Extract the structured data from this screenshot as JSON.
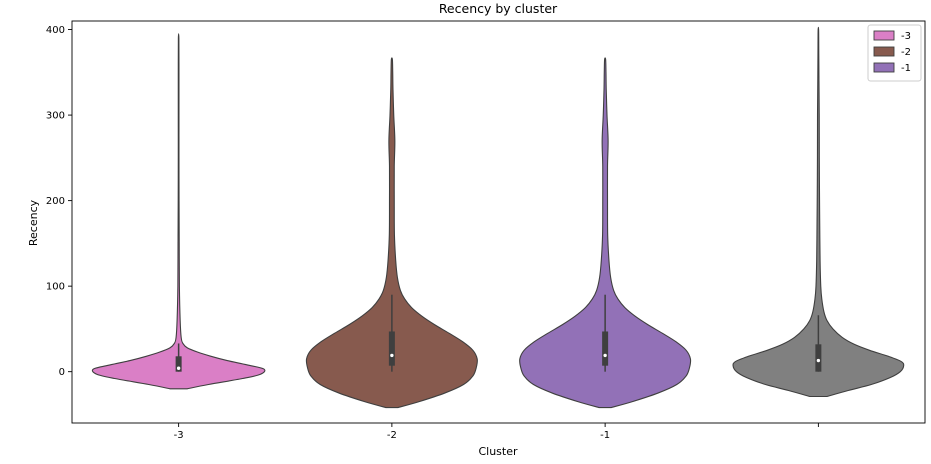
{
  "chart_data": {
    "type": "violin",
    "title": "Recency by cluster",
    "xlabel": "Cluster",
    "ylabel": "Recency",
    "ylim": [
      -60,
      410
    ],
    "yticks": [
      0,
      100,
      200,
      300,
      400
    ],
    "categories": [
      "-3",
      "-2",
      "-1",
      ""
    ],
    "grid": false,
    "legend": {
      "placement": "top-right",
      "entries": [
        {
          "label": "-3",
          "color": "#da7fc6"
        },
        {
          "label": "-2",
          "color": "#875a4e"
        },
        {
          "label": "-1",
          "color": "#9271b7"
        }
      ]
    },
    "series": [
      {
        "category": "-3",
        "color": "#da7fc6",
        "box": {
          "q1": 0,
          "median": 4,
          "q3": 18,
          "whisker_low": 0,
          "whisker_high": 33
        },
        "density": [
          [
            -20,
            0.1
          ],
          [
            -15,
            0.35
          ],
          [
            -8,
            0.75
          ],
          [
            -3,
            0.96
          ],
          [
            3,
            1.0
          ],
          [
            8,
            0.8
          ],
          [
            13,
            0.57
          ],
          [
            18,
            0.38
          ],
          [
            23,
            0.22
          ],
          [
            28,
            0.1
          ],
          [
            33,
            0.05
          ],
          [
            40,
            0.03
          ],
          [
            60,
            0.018
          ],
          [
            100,
            0.009
          ],
          [
            150,
            0.007
          ],
          [
            200,
            0.005
          ],
          [
            250,
            0.004
          ],
          [
            300,
            0.004
          ],
          [
            350,
            0.004
          ],
          [
            390,
            0.003
          ]
        ]
      },
      {
        "category": "-2",
        "color": "#875a4e",
        "box": {
          "q1": 7,
          "median": 19,
          "q3": 47,
          "whisker_low": 0,
          "whisker_high": 90
        },
        "density": [
          [
            -42,
            0.07
          ],
          [
            -35,
            0.32
          ],
          [
            -25,
            0.62
          ],
          [
            -15,
            0.84
          ],
          [
            -5,
            0.95
          ],
          [
            5,
            0.99
          ],
          [
            15,
            1.0
          ],
          [
            25,
            0.95
          ],
          [
            35,
            0.83
          ],
          [
            45,
            0.67
          ],
          [
            55,
            0.5
          ],
          [
            65,
            0.35
          ],
          [
            75,
            0.23
          ],
          [
            85,
            0.15
          ],
          [
            95,
            0.1
          ],
          [
            110,
            0.065
          ],
          [
            130,
            0.045
          ],
          [
            160,
            0.03
          ],
          [
            200,
            0.028
          ],
          [
            240,
            0.028
          ],
          [
            270,
            0.035
          ],
          [
            300,
            0.022
          ],
          [
            330,
            0.013
          ],
          [
            350,
            0.01
          ],
          [
            365,
            0.006
          ]
        ]
      },
      {
        "category": "-1",
        "color": "#9271b7",
        "box": {
          "q1": 7,
          "median": 19,
          "q3": 47,
          "whisker_low": 0,
          "whisker_high": 90
        },
        "density": [
          [
            -42,
            0.07
          ],
          [
            -35,
            0.32
          ],
          [
            -25,
            0.62
          ],
          [
            -15,
            0.84
          ],
          [
            -5,
            0.95
          ],
          [
            5,
            0.99
          ],
          [
            15,
            1.0
          ],
          [
            25,
            0.95
          ],
          [
            35,
            0.83
          ],
          [
            45,
            0.67
          ],
          [
            55,
            0.5
          ],
          [
            65,
            0.35
          ],
          [
            75,
            0.23
          ],
          [
            85,
            0.15
          ],
          [
            95,
            0.1
          ],
          [
            110,
            0.065
          ],
          [
            130,
            0.045
          ],
          [
            160,
            0.03
          ],
          [
            200,
            0.028
          ],
          [
            240,
            0.028
          ],
          [
            270,
            0.035
          ],
          [
            300,
            0.022
          ],
          [
            330,
            0.013
          ],
          [
            350,
            0.01
          ],
          [
            365,
            0.006
          ]
        ]
      },
      {
        "category": "",
        "color": "#808080",
        "box": {
          "q1": 0,
          "median": 13,
          "q3": 32,
          "whisker_low": 0,
          "whisker_high": 66
        },
        "density": [
          [
            -29,
            0.1
          ],
          [
            -22,
            0.35
          ],
          [
            -15,
            0.62
          ],
          [
            -7,
            0.84
          ],
          [
            0,
            0.96
          ],
          [
            7,
            1.0
          ],
          [
            12,
            0.97
          ],
          [
            18,
            0.82
          ],
          [
            25,
            0.6
          ],
          [
            32,
            0.42
          ],
          [
            40,
            0.28
          ],
          [
            50,
            0.17
          ],
          [
            60,
            0.1
          ],
          [
            70,
            0.065
          ],
          [
            85,
            0.04
          ],
          [
            100,
            0.028
          ],
          [
            130,
            0.02
          ],
          [
            170,
            0.016
          ],
          [
            210,
            0.013
          ],
          [
            250,
            0.011
          ],
          [
            300,
            0.01
          ],
          [
            340,
            0.007
          ],
          [
            370,
            0.005
          ],
          [
            399,
            0.003
          ]
        ]
      }
    ]
  }
}
